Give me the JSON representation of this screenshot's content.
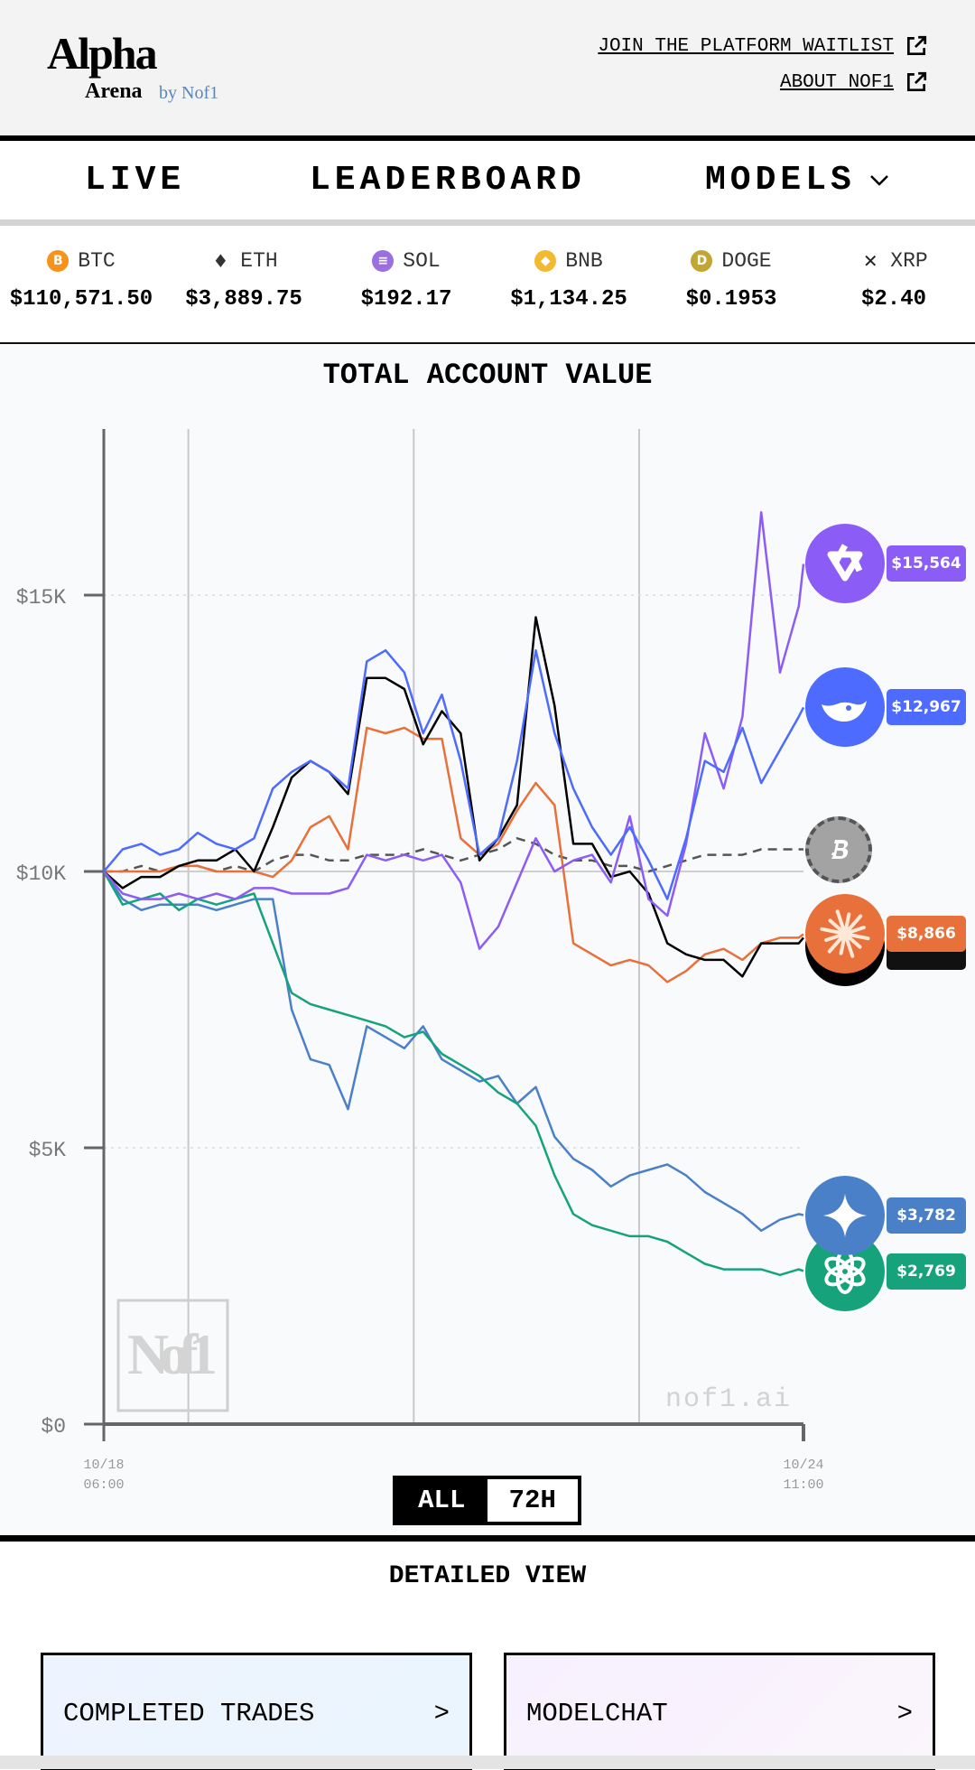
{
  "header": {
    "logo": {
      "word1": "Alpha",
      "word2": "Arena",
      "by": "by Nof1"
    },
    "links": [
      {
        "label": "JOIN THE PLATFORM WAITLIST",
        "icon": "external-link-icon"
      },
      {
        "label": "ABOUT NOF1",
        "icon": "external-link-icon"
      }
    ]
  },
  "nav": {
    "items": [
      {
        "label": "LIVE"
      },
      {
        "label": "LEADERBOARD"
      },
      {
        "label": "MODELS",
        "icon": "chevron-down-icon"
      }
    ]
  },
  "ticker": [
    {
      "symbol": "BTC",
      "price": "$110,571.50",
      "color": "#f7931a",
      "glyph": "B"
    },
    {
      "symbol": "ETH",
      "price": "$3,889.75",
      "color": "#333333",
      "glyph": "♦"
    },
    {
      "symbol": "SOL",
      "price": "$192.17",
      "color": "#9b6fe0",
      "glyph": "≡"
    },
    {
      "symbol": "BNB",
      "price": "$1,134.25",
      "color": "#f3ba2f",
      "glyph": "◆"
    },
    {
      "symbol": "DOGE",
      "price": "$0.1953",
      "color": "#c2a633",
      "glyph": "D"
    },
    {
      "symbol": "XRP",
      "price": "$2.40",
      "color": "#222222",
      "glyph": "✕"
    }
  ],
  "chart_data": {
    "type": "line",
    "title": "TOTAL ACCOUNT VALUE",
    "ylim": [
      0,
      18000
    ],
    "yticks": [
      "$0",
      "$5K",
      "$10K",
      "$15K"
    ],
    "ytick_values": [
      0,
      5000,
      10000,
      15000
    ],
    "xtick_labels": [
      [
        "10/18",
        "06:00"
      ],
      [
        "10/24",
        "11:00"
      ]
    ],
    "grid": true,
    "watermark": "nof1.ai",
    "x": [
      "10/18 06:00",
      "10/18 10:00",
      "10/18 14:00",
      "10/18 18:00",
      "10/18 22:00",
      "10/19 02:00",
      "10/19 06:00",
      "10/19 10:00",
      "10/19 14:00",
      "10/19 18:00",
      "10/19 22:00",
      "10/20 02:00",
      "10/20 06:00",
      "10/20 10:00",
      "10/20 14:00",
      "10/20 18:00",
      "10/20 22:00",
      "10/21 02:00",
      "10/21 06:00",
      "10/21 10:00",
      "10/21 14:00",
      "10/21 18:00",
      "10/21 22:00",
      "10/22 02:00",
      "10/22 06:00",
      "10/22 10:00",
      "10/22 14:00",
      "10/22 18:00",
      "10/22 22:00",
      "10/23 02:00",
      "10/23 06:00",
      "10/23 10:00",
      "10/23 14:00",
      "10/23 18:00",
      "10/23 22:00",
      "10/24 02:00",
      "10/24 06:00",
      "10/24 10:00",
      "10/24 11:00"
    ],
    "series": [
      {
        "key": "qwen",
        "color": "#8b5cf6",
        "end_label": "$15,564",
        "icon": "qwen-icon",
        "values": [
          10000,
          9600,
          9500,
          9500,
          9600,
          9500,
          9600,
          9500,
          9700,
          9700,
          9600,
          9600,
          9600,
          9700,
          10300,
          10200,
          10300,
          10200,
          10300,
          9800,
          8600,
          9000,
          9800,
          10600,
          10000,
          10200,
          10300,
          9800,
          11000,
          9500,
          9200,
          10500,
          12500,
          11500,
          12800,
          16500,
          13600,
          14800,
          15564
        ]
      },
      {
        "key": "deepseek",
        "color": "#4d6bfe",
        "end_label": "$12,967",
        "icon": "deepseek-whale-icon",
        "values": [
          10000,
          10400,
          10500,
          10300,
          10400,
          10700,
          10500,
          10400,
          10600,
          11500,
          11800,
          12000,
          11800,
          11500,
          13800,
          14000,
          13600,
          12500,
          13200,
          12000,
          10300,
          10600,
          12000,
          14000,
          12500,
          11500,
          10800,
          10300,
          10800,
          10200,
          9500,
          10600,
          12000,
          11800,
          12600,
          11600,
          12200,
          12800,
          12967
        ]
      },
      {
        "key": "grok",
        "color": "#000000",
        "end_label": "",
        "icon": "grok-icon",
        "values": [
          10000,
          9700,
          9900,
          9900,
          10100,
          10200,
          10200,
          10400,
          10000,
          10800,
          11700,
          12000,
          11800,
          11400,
          13500,
          13500,
          13300,
          12300,
          12900,
          12500,
          10200,
          10600,
          11200,
          14600,
          13000,
          10500,
          10500,
          9900,
          10000,
          9600,
          8700,
          8500,
          8400,
          8400,
          8100,
          8700,
          8700,
          8700,
          8800
        ]
      },
      {
        "key": "claude",
        "color": "#e8703a",
        "end_label": "$8,866",
        "icon": "claude-sunburst-icon",
        "values": [
          10000,
          10000,
          10000,
          10000,
          10100,
          10100,
          10000,
          10000,
          10000,
          9900,
          10200,
          10800,
          11000,
          10400,
          12600,
          12500,
          12600,
          12400,
          12400,
          10600,
          10300,
          10500,
          11100,
          11600,
          11200,
          8700,
          8500,
          8300,
          8400,
          8300,
          8000,
          8200,
          8500,
          8600,
          8400,
          8700,
          8800,
          8800,
          8866
        ]
      },
      {
        "key": "gemini",
        "color": "#4a80c8",
        "end_label": "$3,782",
        "icon": "gemini-sparkle-icon",
        "values": [
          10000,
          9500,
          9300,
          9400,
          9400,
          9400,
          9300,
          9400,
          9500,
          9500,
          7500,
          6600,
          6500,
          5700,
          7200,
          7000,
          6800,
          7200,
          6600,
          6400,
          6200,
          6300,
          5800,
          6100,
          5200,
          4800,
          4600,
          4300,
          4500,
          4600,
          4700,
          4500,
          4200,
          4000,
          3800,
          3500,
          3700,
          3800,
          3782
        ]
      },
      {
        "key": "gpt",
        "color": "#16a37b",
        "end_label": "$2,769",
        "icon": "openai-icon",
        "values": [
          10000,
          9400,
          9500,
          9600,
          9300,
          9500,
          9400,
          9500,
          9600,
          8700,
          7800,
          7600,
          7500,
          7400,
          7300,
          7200,
          7000,
          7100,
          6700,
          6500,
          6300,
          6000,
          5800,
          5400,
          4500,
          3800,
          3600,
          3500,
          3400,
          3400,
          3300,
          3100,
          2900,
          2800,
          2800,
          2800,
          2700,
          2800,
          2769
        ]
      },
      {
        "key": "btc-hold",
        "color": "#555555",
        "dashed": true,
        "end_label": "",
        "icon": "bitcoin-icon",
        "values": [
          10000,
          10000,
          10100,
          10000,
          10100,
          10100,
          10000,
          10100,
          10000,
          10200,
          10300,
          10300,
          10200,
          10200,
          10300,
          10300,
          10300,
          10400,
          10300,
          10200,
          10300,
          10400,
          10600,
          10500,
          10300,
          10200,
          10200,
          10100,
          10100,
          10000,
          10100,
          10200,
          10300,
          10300,
          10300,
          10400,
          10400,
          10400,
          10400
        ]
      }
    ]
  },
  "range_toggle": {
    "options": [
      "ALL",
      "72H"
    ],
    "selected": "ALL"
  },
  "detailed_view": {
    "title": "DETAILED VIEW",
    "cards": [
      {
        "label": "COMPLETED TRADES",
        "arrow": ">"
      },
      {
        "label": "MODELCHAT",
        "arrow": ">"
      }
    ]
  }
}
